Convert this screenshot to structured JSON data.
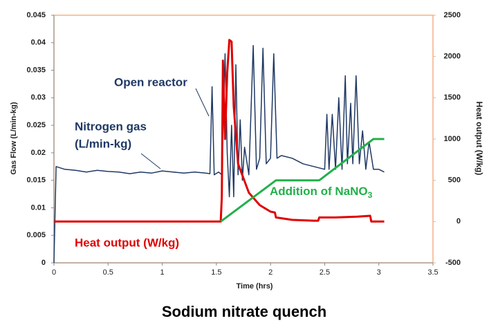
{
  "chart_data": {
    "type": "line",
    "title": "Sodium nitrate quench",
    "xlabel": "Time (hrs)",
    "ylabel": "Gas Flow (L/min-kg)",
    "y2label": "Heat output (W/kg)",
    "xlim": [
      0,
      3.5
    ],
    "xticks": [
      0,
      0.5,
      1,
      1.5,
      2,
      2.5,
      3,
      3.5
    ],
    "ylim": [
      0,
      0.045
    ],
    "yticks": [
      0,
      0.005,
      0.01,
      0.015,
      0.02,
      0.025,
      0.03,
      0.035,
      0.04,
      0.045
    ],
    "y2lim": [
      -500,
      2500
    ],
    "y2ticks": [
      -500,
      0,
      500,
      1000,
      1500,
      2000,
      2500
    ],
    "annotations": [
      {
        "text": "Open reactor"
      },
      {
        "text": "Nitrogen gas"
      },
      {
        "text": "(L/min-kg)"
      },
      {
        "text": "Heat output (W/kg)"
      },
      {
        "text": "Addition of NaNO",
        "sub": "3"
      }
    ],
    "series": [
      {
        "name": "Nitrogen gas",
        "color": "#1f3864",
        "axis": "y",
        "x": [
          0,
          0.02,
          0.1,
          0.2,
          0.3,
          0.4,
          0.5,
          0.6,
          0.7,
          0.8,
          0.9,
          1.0,
          1.1,
          1.2,
          1.3,
          1.4,
          1.44,
          1.46,
          1.48,
          1.52,
          1.55,
          1.58,
          1.6,
          1.62,
          1.64,
          1.66,
          1.68,
          1.7,
          1.72,
          1.74,
          1.76,
          1.8,
          1.84,
          1.87,
          1.9,
          1.93,
          1.96,
          2.0,
          2.03,
          2.06,
          2.1,
          2.2,
          2.3,
          2.4,
          2.5,
          2.52,
          2.54,
          2.57,
          2.6,
          2.63,
          2.66,
          2.69,
          2.71,
          2.74,
          2.76,
          2.79,
          2.82,
          2.85,
          2.88,
          2.91,
          2.95,
          3.0,
          3.05
        ],
        "values": [
          0,
          0.0175,
          0.017,
          0.0168,
          0.0165,
          0.0168,
          0.0166,
          0.0165,
          0.0162,
          0.0165,
          0.0163,
          0.0167,
          0.0165,
          0.0163,
          0.0165,
          0.0163,
          0.0162,
          0.032,
          0.016,
          0.0165,
          0.016,
          0.038,
          0.02,
          0.012,
          0.025,
          0.012,
          0.036,
          0.016,
          0.026,
          0.015,
          0.021,
          0.016,
          0.0395,
          0.017,
          0.019,
          0.039,
          0.018,
          0.019,
          0.038,
          0.019,
          0.0195,
          0.019,
          0.018,
          0.0175,
          0.017,
          0.027,
          0.017,
          0.027,
          0.017,
          0.03,
          0.017,
          0.034,
          0.018,
          0.029,
          0.018,
          0.034,
          0.018,
          0.024,
          0.017,
          0.022,
          0.017,
          0.017,
          0.0165
        ]
      },
      {
        "name": "Heat output",
        "color": "#e00000",
        "axis": "y2",
        "x": [
          0,
          1.54,
          1.55,
          1.56,
          1.58,
          1.6,
          1.62,
          1.64,
          1.66,
          1.7,
          1.8,
          1.9,
          2.0,
          2.04,
          2.05,
          2.2,
          2.4,
          2.44,
          2.45,
          2.6,
          2.8,
          2.92,
          2.93,
          3.05
        ],
        "values": [
          0,
          0,
          300,
          1950,
          1000,
          1800,
          2200,
          2180,
          1400,
          700,
          350,
          200,
          120,
          110,
          50,
          20,
          10,
          10,
          50,
          50,
          60,
          70,
          0,
          0
        ]
      },
      {
        "name": "Addition of NaNO3",
        "color": "#22b04a",
        "axis": "y2",
        "x": [
          1.54,
          2.05,
          2.45,
          2.95,
          3.05
        ],
        "values": [
          0,
          500,
          500,
          1000,
          1000
        ]
      }
    ]
  }
}
